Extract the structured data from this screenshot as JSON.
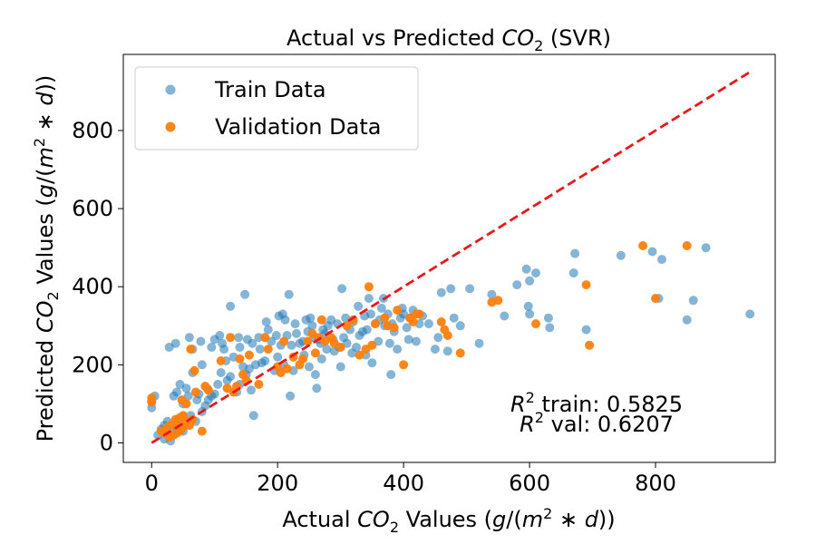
{
  "chart_data": {
    "type": "scatter",
    "title": "Actual vs Predicted CO2 (SVR)",
    "xlabel": "Actual CO2 Values (g/(m^2*d))",
    "ylabel": "Predicted CO2 Values (g/(m^2*d))",
    "xlim": [
      -45,
      990
    ],
    "ylim": [
      -50,
      995
    ],
    "xticks": [
      0,
      200,
      400,
      600,
      800
    ],
    "yticks": [
      0,
      200,
      400,
      600,
      800
    ],
    "grid": false,
    "legend_position": "top-left",
    "identity_line": {
      "from": [
        0,
        0
      ],
      "to": [
        950,
        950
      ],
      "color": "#e8191a",
      "style": "dashed"
    },
    "annotations": [
      {
        "text": "R^2 train: 0.5825",
        "x": 658,
        "y": 105
      },
      {
        "text": "R^2 val: 0.6207",
        "x": 658,
        "y": 55
      }
    ],
    "series": [
      {
        "name": "Train Data",
        "color": "#1f77b4",
        "points": [
          [
            0,
            90
          ],
          [
            0,
            105
          ],
          [
            5,
            120
          ],
          [
            10,
            20
          ],
          [
            15,
            35
          ],
          [
            20,
            10
          ],
          [
            20,
            45
          ],
          [
            25,
            55
          ],
          [
            28,
            245
          ],
          [
            30,
            5
          ],
          [
            30,
            30
          ],
          [
            35,
            120
          ],
          [
            38,
            255
          ],
          [
            40,
            40
          ],
          [
            40,
            130
          ],
          [
            45,
            60
          ],
          [
            45,
            150
          ],
          [
            50,
            30
          ],
          [
            50,
            100
          ],
          [
            55,
            140
          ],
          [
            58,
            120
          ],
          [
            60,
            270
          ],
          [
            62,
            70
          ],
          [
            65,
            180
          ],
          [
            65,
            240
          ],
          [
            70,
            55
          ],
          [
            72,
            110
          ],
          [
            75,
            125
          ],
          [
            78,
            260
          ],
          [
            80,
            80
          ],
          [
            80,
            200
          ],
          [
            85,
            95
          ],
          [
            88,
            140
          ],
          [
            90,
            110
          ],
          [
            95,
            120
          ],
          [
            95,
            245
          ],
          [
            100,
            125
          ],
          [
            100,
            265
          ],
          [
            105,
            150
          ],
          [
            108,
            275
          ],
          [
            110,
            180
          ],
          [
            112,
            255
          ],
          [
            115,
            240
          ],
          [
            118,
            210
          ],
          [
            120,
            160
          ],
          [
            125,
            170
          ],
          [
            125,
            350
          ],
          [
            130,
            220
          ],
          [
            135,
            130
          ],
          [
            138,
            270
          ],
          [
            140,
            150
          ],
          [
            140,
            245
          ],
          [
            145,
            195
          ],
          [
            148,
            380
          ],
          [
            150,
            175
          ],
          [
            152,
            265
          ],
          [
            155,
            190
          ],
          [
            158,
            135
          ],
          [
            160,
            255
          ],
          [
            162,
            70
          ],
          [
            165,
            200
          ],
          [
            170,
            270
          ],
          [
            172,
            240
          ],
          [
            175,
            205
          ],
          [
            180,
            210
          ],
          [
            182,
            310
          ],
          [
            185,
            290
          ],
          [
            190,
            260
          ],
          [
            195,
            185
          ],
          [
            198,
            275
          ],
          [
            200,
            220
          ],
          [
            202,
            325
          ],
          [
            205,
            250
          ],
          [
            208,
            330
          ],
          [
            210,
            200
          ],
          [
            212,
            315
          ],
          [
            215,
            275
          ],
          [
            218,
            380
          ],
          [
            220,
            120
          ],
          [
            222,
            250
          ],
          [
            225,
            185
          ],
          [
            228,
            305
          ],
          [
            230,
            280
          ],
          [
            235,
            255
          ],
          [
            240,
            260
          ],
          [
            242,
            225
          ],
          [
            245,
            315
          ],
          [
            248,
            285
          ],
          [
            250,
            195
          ],
          [
            252,
            320
          ],
          [
            255,
            300
          ],
          [
            258,
            270
          ],
          [
            260,
            175
          ],
          [
            262,
            140
          ],
          [
            265,
            265
          ],
          [
            268,
            255
          ],
          [
            270,
            215
          ],
          [
            272,
            290
          ],
          [
            275,
            280
          ],
          [
            278,
            240
          ],
          [
            280,
            300
          ],
          [
            285,
            315
          ],
          [
            288,
            265
          ],
          [
            290,
            235
          ],
          [
            295,
            305
          ],
          [
            298,
            245
          ],
          [
            300,
            195
          ],
          [
            302,
            395
          ],
          [
            305,
            270
          ],
          [
            308,
            320
          ],
          [
            310,
            255
          ],
          [
            315,
            290
          ],
          [
            318,
            230
          ],
          [
            320,
            310
          ],
          [
            325,
            245
          ],
          [
            328,
            350
          ],
          [
            330,
            275
          ],
          [
            335,
            285
          ],
          [
            338,
            325
          ],
          [
            340,
            225
          ],
          [
            342,
            290
          ],
          [
            345,
            370
          ],
          [
            348,
            330
          ],
          [
            350,
            205
          ],
          [
            355,
            305
          ],
          [
            360,
            260
          ],
          [
            362,
            315
          ],
          [
            365,
            345
          ],
          [
            368,
            370
          ],
          [
            370,
            300
          ],
          [
            375,
            330
          ],
          [
            378,
            255
          ],
          [
            380,
            175
          ],
          [
            382,
            305
          ],
          [
            385,
            285
          ],
          [
            390,
            240
          ],
          [
            395,
            320
          ],
          [
            398,
            345
          ],
          [
            400,
            330
          ],
          [
            405,
            295
          ],
          [
            408,
            265
          ],
          [
            410,
            320
          ],
          [
            415,
            340
          ],
          [
            420,
            260
          ],
          [
            425,
            305
          ],
          [
            430,
            325
          ],
          [
            440,
            305
          ],
          [
            450,
            240
          ],
          [
            455,
            270
          ],
          [
            460,
            385
          ],
          [
            470,
            235
          ],
          [
            475,
            395
          ],
          [
            480,
            320
          ],
          [
            490,
            300
          ],
          [
            505,
            395
          ],
          [
            520,
            255
          ],
          [
            540,
            380
          ],
          [
            560,
            325
          ],
          [
            580,
            405
          ],
          [
            595,
            445
          ],
          [
            598,
            350
          ],
          [
            600,
            330
          ],
          [
            600,
            415
          ],
          [
            610,
            435
          ],
          [
            630,
            320
          ],
          [
            632,
            295
          ],
          [
            670,
            435
          ],
          [
            672,
            485
          ],
          [
            690,
            290
          ],
          [
            745,
            480
          ],
          [
            795,
            490
          ],
          [
            805,
            370
          ],
          [
            810,
            470
          ],
          [
            850,
            315
          ],
          [
            860,
            365
          ],
          [
            880,
            500
          ],
          [
            950,
            330
          ]
        ]
      },
      {
        "name": "Validation Data",
        "color": "#ff7f0e",
        "points": [
          [
            0,
            105
          ],
          [
            0,
            115
          ],
          [
            15,
            30
          ],
          [
            20,
            25
          ],
          [
            25,
            40
          ],
          [
            28,
            15
          ],
          [
            30,
            45
          ],
          [
            35,
            20
          ],
          [
            38,
            60
          ],
          [
            40,
            50
          ],
          [
            40,
            25
          ],
          [
            45,
            30
          ],
          [
            45,
            65
          ],
          [
            48,
            110
          ],
          [
            50,
            40
          ],
          [
            50,
            70
          ],
          [
            55,
            55
          ],
          [
            55,
            100
          ],
          [
            60,
            45
          ],
          [
            62,
            240
          ],
          [
            65,
            60
          ],
          [
            68,
            185
          ],
          [
            70,
            130
          ],
          [
            80,
            30
          ],
          [
            85,
            145
          ],
          [
            90,
            135
          ],
          [
            110,
            210
          ],
          [
            120,
            140
          ],
          [
            125,
            270
          ],
          [
            130,
            130
          ],
          [
            135,
            145
          ],
          [
            140,
            215
          ],
          [
            145,
            175
          ],
          [
            150,
            160
          ],
          [
            155,
            225
          ],
          [
            170,
            150
          ],
          [
            180,
            270
          ],
          [
            185,
            240
          ],
          [
            200,
            195
          ],
          [
            205,
            180
          ],
          [
            210,
            260
          ],
          [
            215,
            190
          ],
          [
            225,
            220
          ],
          [
            235,
            200
          ],
          [
            240,
            215
          ],
          [
            248,
            260
          ],
          [
            255,
            280
          ],
          [
            260,
            230
          ],
          [
            265,
            270
          ],
          [
            270,
            315
          ],
          [
            275,
            260
          ],
          [
            285,
            270
          ],
          [
            290,
            255
          ],
          [
            300,
            245
          ],
          [
            310,
            300
          ],
          [
            320,
            315
          ],
          [
            330,
            225
          ],
          [
            340,
            240
          ],
          [
            345,
            400
          ],
          [
            350,
            250
          ],
          [
            355,
            305
          ],
          [
            370,
            320
          ],
          [
            375,
            300
          ],
          [
            385,
            295
          ],
          [
            390,
            340
          ],
          [
            400,
            200
          ],
          [
            410,
            320
          ],
          [
            415,
            310
          ],
          [
            420,
            330
          ],
          [
            425,
            330
          ],
          [
            460,
            310
          ],
          [
            465,
            290
          ],
          [
            470,
            275
          ],
          [
            490,
            230
          ],
          [
            540,
            360
          ],
          [
            550,
            365
          ],
          [
            610,
            305
          ],
          [
            690,
            405
          ],
          [
            695,
            250
          ],
          [
            780,
            505
          ],
          [
            800,
            370
          ],
          [
            850,
            505
          ]
        ]
      }
    ]
  }
}
